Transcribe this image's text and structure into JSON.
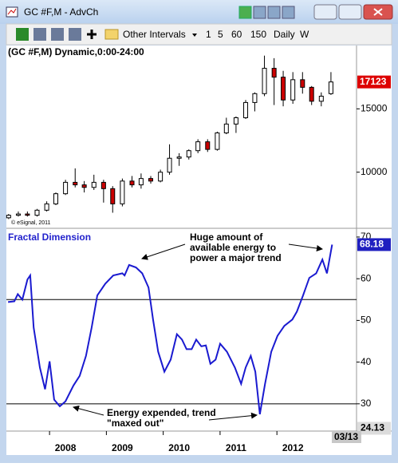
{
  "window": {
    "title": "GC #F,M - AdvCh"
  },
  "toolbar": {
    "items": [
      "Other Intervals",
      "1",
      "5",
      "60",
      "150",
      "Daily",
      "W"
    ]
  },
  "chart_data": [
    {
      "type": "candlestick",
      "title": "(GC #F,M) Dynamic,0:00-24:00",
      "watermark": "© eSignal, 2011",
      "x": [
        2007.0,
        2007.17,
        2007.33,
        2007.5,
        2007.67,
        2007.83,
        2008.0,
        2008.17,
        2008.33,
        2008.5,
        2008.67,
        2008.83,
        2009.0,
        2009.17,
        2009.33,
        2009.5,
        2009.67,
        2009.83,
        2010.0,
        2010.17,
        2010.33,
        2010.5,
        2010.67,
        2010.83,
        2011.0,
        2011.17,
        2011.33,
        2011.5,
        2011.67,
        2011.83,
        2012.0,
        2012.17,
        2012.33,
        2012.5,
        2012.67
      ],
      "open": [
        6400,
        6600,
        6700,
        6600,
        7000,
        7500,
        8300,
        9200,
        9000,
        8800,
        9200,
        8700,
        7500,
        9300,
        9000,
        9500,
        9300,
        10000,
        11100,
        11200,
        11700,
        12400,
        11800,
        13100,
        13800,
        14300,
        15500,
        16200,
        18200,
        17500,
        15700,
        17300,
        16700,
        15600,
        16200
      ],
      "high": [
        6700,
        6900,
        6900,
        7100,
        7700,
        8400,
        9400,
        10300,
        9300,
        9800,
        9400,
        8900,
        9500,
        9700,
        9900,
        9700,
        10200,
        12200,
        11500,
        11800,
        12600,
        12600,
        13200,
        14300,
        14400,
        15700,
        16300,
        19200,
        19000,
        18000,
        17900,
        17900,
        16800,
        16300,
        17900
      ],
      "low": [
        6300,
        6500,
        6500,
        6500,
        6900,
        7400,
        8200,
        8800,
        8400,
        8600,
        7600,
        6800,
        7300,
        8800,
        8700,
        9100,
        9200,
        9800,
        10500,
        11000,
        11500,
        11600,
        11700,
        13000,
        13100,
        14200,
        14800,
        16000,
        15300,
        15200,
        15400,
        16200,
        15300,
        15200,
        16100
      ],
      "close": [
        6600,
        6700,
        6600,
        7000,
        7500,
        8300,
        9200,
        9000,
        8800,
        9200,
        8700,
        7500,
        9300,
        9000,
        9500,
        9300,
        10000,
        11100,
        11200,
        11700,
        12400,
        11800,
        13100,
        13800,
        14300,
        15500,
        16200,
        18200,
        17500,
        15700,
        17300,
        16700,
        15600,
        16000,
        17123
      ],
      "up_color": "#ffffff",
      "down_color": "#cc0000",
      "last_color": "#dd0000",
      "xlim": [
        2006.96,
        2013.12
      ],
      "ylim": [
        5570,
        20000
      ],
      "yticks": [
        10000,
        15000
      ]
    },
    {
      "type": "line",
      "title": "Fractal Dimension",
      "color": "#1a1ad0",
      "level_color": "#000000",
      "x": [
        2006.99,
        2007.1,
        2007.16,
        2007.24,
        2007.33,
        2007.38,
        2007.44,
        2007.55,
        2007.64,
        2007.72,
        2007.8,
        2007.9,
        2008.0,
        2008.14,
        2008.25,
        2008.36,
        2008.46,
        2008.56,
        2008.7,
        2008.84,
        2009.0,
        2009.04,
        2009.12,
        2009.24,
        2009.35,
        2009.46,
        2009.54,
        2009.63,
        2009.74,
        2009.85,
        2009.96,
        2010.05,
        2010.13,
        2010.22,
        2010.3,
        2010.39,
        2010.47,
        2010.55,
        2010.64,
        2010.72,
        2010.84,
        2010.98,
        2011.09,
        2011.17,
        2011.26,
        2011.34,
        2011.42,
        2011.51,
        2011.62,
        2011.73,
        2011.85,
        2011.99,
        2012.07,
        2012.18,
        2012.29,
        2012.41,
        2012.52,
        2012.6,
        2012.69
      ],
      "values": [
        54.4,
        54.6,
        56.3,
        55.0,
        59.8,
        60.8,
        48.3,
        38.7,
        33.5,
        40.2,
        31.0,
        29.4,
        30.6,
        34.4,
        36.7,
        41.5,
        48.3,
        56.0,
        58.8,
        60.8,
        61.3,
        60.8,
        63.3,
        62.7,
        61.3,
        57.9,
        50.2,
        42.5,
        37.7,
        40.6,
        46.7,
        45.4,
        43.1,
        43.1,
        45.4,
        43.8,
        44.0,
        39.6,
        40.6,
        44.4,
        42.5,
        38.7,
        34.8,
        38.7,
        41.5,
        37.7,
        27.5,
        34.8,
        42.5,
        46.3,
        48.7,
        50.2,
        52.1,
        56.0,
        60.2,
        61.3,
        64.6,
        61.3,
        68.18
      ],
      "levels": [
        55,
        30
      ],
      "lower_label": 24.13,
      "xlim": [
        2006.96,
        2013.12
      ],
      "ylim": [
        23.65,
        71.9
      ],
      "yticks": [
        30,
        40,
        50,
        60,
        70
      ],
      "xticks": [
        2008,
        2009,
        2010,
        2011,
        2012
      ],
      "end_label": "03/13",
      "annotations": [
        {
          "text": [
            "Huge amount of",
            "available energy to",
            "power a major trend"
          ]
        },
        {
          "text": [
            "Energy expended, trend",
            "\"maxed out\""
          ]
        }
      ]
    }
  ]
}
